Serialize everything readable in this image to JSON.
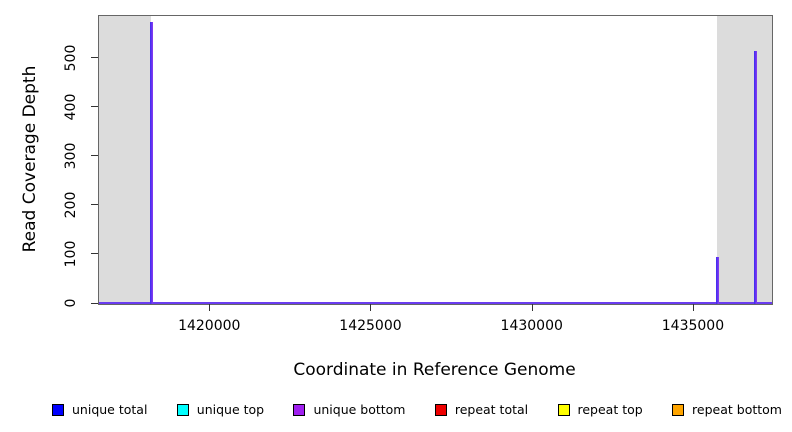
{
  "chart_data": {
    "type": "line",
    "xlabel": "Coordinate in Reference Genome",
    "ylabel": "Read Coverage Depth",
    "x_range": [
      1416550,
      1437420
    ],
    "y_range": [
      0,
      587
    ],
    "x_ticks": [
      {
        "value": 1420000,
        "label": "1420000"
      },
      {
        "value": 1425000,
        "label": "1425000"
      },
      {
        "value": 1430000,
        "label": "1430000"
      },
      {
        "value": 1435000,
        "label": "1435000"
      }
    ],
    "y_ticks": [
      {
        "value": 0,
        "label": "0"
      },
      {
        "value": 100,
        "label": "100"
      },
      {
        "value": 200,
        "label": "200"
      },
      {
        "value": 300,
        "label": "300"
      },
      {
        "value": 400,
        "label": "400"
      },
      {
        "value": 500,
        "label": "500"
      }
    ],
    "grid": false,
    "legend_position": "bottom",
    "shaded_regions": [
      {
        "from": 1416550,
        "to": 1418150
      },
      {
        "from": 1435710,
        "to": 1437420
      }
    ],
    "shaded_region_color": "#dcdcdc",
    "baseline_value": 0,
    "baseline_color": "#6a3cf0",
    "spike_colors": [
      "#3a2cf0",
      "#8a3cf0"
    ],
    "spikes": [
      {
        "x": 1418190,
        "depth": 575
      },
      {
        "x": 1435730,
        "depth": 95
      },
      {
        "x": 1436925,
        "depth": 515
      }
    ],
    "legend": [
      {
        "label": "unique total",
        "color": "#0000ff"
      },
      {
        "label": "unique top",
        "color": "#00ffff"
      },
      {
        "label": "unique bottom",
        "color": "#a020f0"
      },
      {
        "label": "repeat total",
        "color": "#ee0000"
      },
      {
        "label": "repeat top",
        "color": "#ffff00"
      },
      {
        "label": "repeat bottom",
        "color": "#ffa500"
      }
    ]
  }
}
